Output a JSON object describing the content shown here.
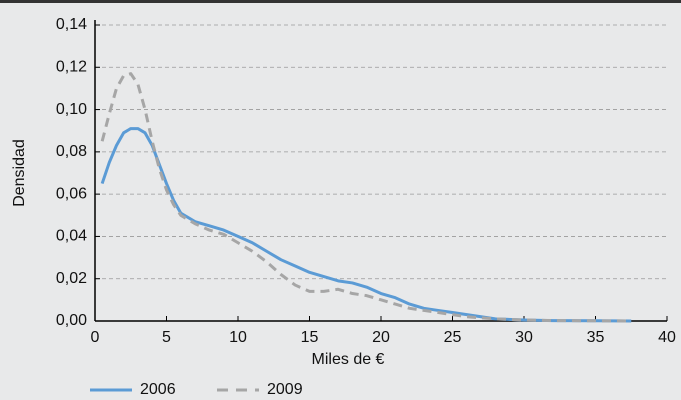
{
  "chart_data": {
    "type": "line",
    "xlabel": "Miles de €",
    "ylabel": "Densidad",
    "x": [
      0.5,
      1,
      1.5,
      2,
      2.5,
      3,
      3.5,
      4,
      4.5,
      5,
      5.5,
      6,
      7,
      8,
      9,
      10,
      11,
      12,
      13,
      14,
      15,
      16,
      17,
      18,
      19,
      20,
      21,
      22,
      23,
      24,
      25,
      26,
      27,
      28,
      30,
      32,
      35,
      37.5
    ],
    "series": [
      {
        "name": "2006",
        "color": "#5b9bd5",
        "style": "solid",
        "values": [
          0.065,
          0.075,
          0.083,
          0.089,
          0.091,
          0.091,
          0.089,
          0.083,
          0.074,
          0.065,
          0.057,
          0.051,
          0.047,
          0.045,
          0.043,
          0.04,
          0.037,
          0.033,
          0.029,
          0.026,
          0.023,
          0.021,
          0.019,
          0.018,
          0.016,
          0.013,
          0.011,
          0.008,
          0.006,
          0.005,
          0.004,
          0.003,
          0.002,
          0.001,
          0.0005,
          0.0002,
          0.0001,
          0
        ]
      },
      {
        "name": "2009",
        "color": "#a6a6a6",
        "style": "dashed",
        "values": [
          0.085,
          0.098,
          0.11,
          0.116,
          0.117,
          0.112,
          0.1,
          0.085,
          0.072,
          0.062,
          0.055,
          0.05,
          0.046,
          0.043,
          0.041,
          0.037,
          0.033,
          0.028,
          0.022,
          0.017,
          0.014,
          0.014,
          0.015,
          0.013,
          0.012,
          0.01,
          0.008,
          0.006,
          0.005,
          0.004,
          0.003,
          0.002,
          0.0015,
          0.001,
          0.0005,
          0.0002,
          0.0001,
          0
        ]
      }
    ],
    "xlim": [
      0,
      40
    ],
    "xticks": [
      0,
      5,
      10,
      15,
      20,
      25,
      30,
      35,
      40
    ],
    "ylim": [
      0,
      0.14
    ],
    "yticks": [
      {
        "value": 0,
        "label": "0,00"
      },
      {
        "value": 0.02,
        "label": "0,02"
      },
      {
        "value": 0.04,
        "label": "0,04"
      },
      {
        "value": 0.06,
        "label": "0,06"
      },
      {
        "value": 0.08,
        "label": "0,08"
      },
      {
        "value": 0.1,
        "label": "0,10"
      },
      {
        "value": 0.12,
        "label": "0,12"
      },
      {
        "value": 0.14,
        "label": "0,14"
      }
    ],
    "grid": true,
    "legend": "bottom-left"
  }
}
